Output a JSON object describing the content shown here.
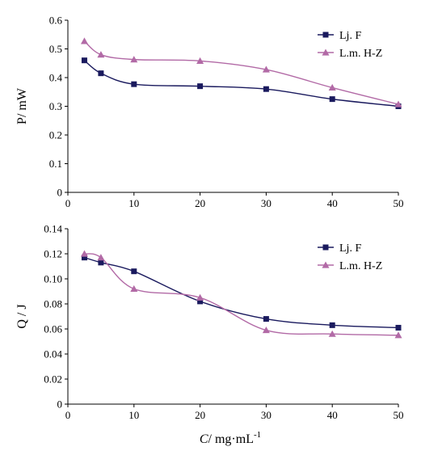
{
  "chart_data": [
    {
      "type": "line",
      "ylabel": "P/ mW",
      "xlabel": "",
      "x": [
        2.5,
        5,
        10,
        20,
        30,
        40,
        50
      ],
      "xlim": [
        0,
        50
      ],
      "xticks": [
        "0",
        "10",
        "20",
        "30",
        "40",
        "50"
      ],
      "ylim": [
        0,
        0.6
      ],
      "yticks": [
        "0",
        "0.1",
        "0.2",
        "0.3",
        "0.4",
        "0.5",
        "0.6"
      ],
      "legend_position": "top-right",
      "grid": false,
      "series": [
        {
          "name": "Lj. F",
          "marker": "square",
          "color": "#1a1a5e",
          "values": [
            0.46,
            0.415,
            0.377,
            0.37,
            0.36,
            0.325,
            0.3
          ]
        },
        {
          "name": "L.m. H-Z",
          "marker": "triangle",
          "color": "#b26aa6",
          "values": [
            0.527,
            0.48,
            0.463,
            0.458,
            0.428,
            0.365,
            0.307
          ]
        }
      ]
    },
    {
      "type": "line",
      "ylabel": "Q / J",
      "xlabel": "C/ mg·mL",
      "xlabel_sup": "-1",
      "x": [
        2.5,
        5,
        10,
        20,
        30,
        40,
        50
      ],
      "xlim": [
        0,
        50
      ],
      "xticks": [
        "0",
        "10",
        "20",
        "30",
        "40",
        "50"
      ],
      "ylim": [
        0,
        0.14
      ],
      "yticks": [
        "0",
        "0.02",
        "0.04",
        "0.06",
        "0.08",
        "0.10",
        "0.12",
        "0.14"
      ],
      "legend_position": "top-right",
      "grid": false,
      "series": [
        {
          "name": "Lj. F",
          "marker": "square",
          "color": "#1a1a5e",
          "values": [
            0.117,
            0.113,
            0.106,
            0.082,
            0.068,
            0.063,
            0.061
          ]
        },
        {
          "name": "L.m. H-Z",
          "marker": "triangle",
          "color": "#b26aa6",
          "values": [
            0.12,
            0.117,
            0.092,
            0.085,
            0.059,
            0.056,
            0.055
          ]
        }
      ]
    }
  ]
}
